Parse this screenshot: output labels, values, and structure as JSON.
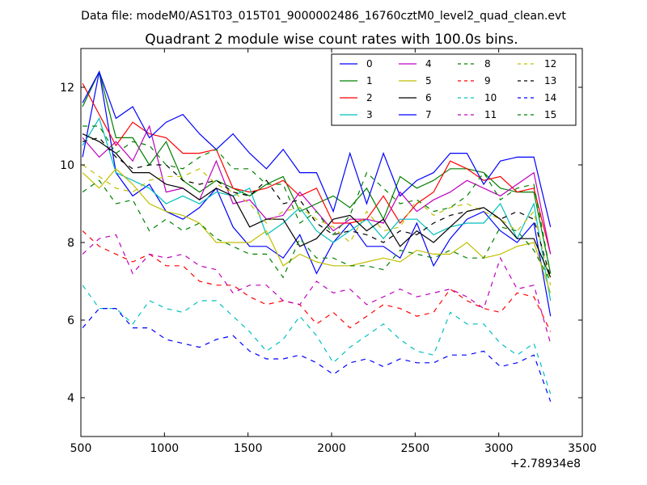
{
  "suptitle": "Data file: modeM0/AS1T03_015T01_9000002486_16760cztM0_level2_quad_clean.evt",
  "chart_data": {
    "type": "line",
    "title": "Quadrant 2 module wise count rates with 100.0s bins.",
    "xlabel": "",
    "ylabel": "",
    "x_offset_label": "+2.78934e8",
    "xlim": [
      500,
      3500
    ],
    "ylim": [
      3,
      13
    ],
    "grid": false,
    "legend_position": "top-right",
    "legend_columns": 4,
    "xticks": [
      500,
      1000,
      1500,
      2000,
      2500,
      3000,
      3500
    ],
    "yticks": [
      4,
      6,
      8,
      10,
      12
    ],
    "x": [
      510,
      610,
      710,
      810,
      910,
      1010,
      1110,
      1210,
      1310,
      1410,
      1510,
      1610,
      1710,
      1810,
      1910,
      2010,
      2110,
      2210,
      2310,
      2410,
      2510,
      2610,
      2710,
      2810,
      2910,
      3010,
      3110,
      3210,
      3310
    ],
    "series": [
      {
        "name": "0",
        "color": "#0000ff",
        "dash": "solid",
        "values": [
          10.2,
          12.4,
          9.8,
          9.2,
          9.5,
          8.8,
          8.6,
          8.9,
          9.4,
          8.4,
          7.9,
          7.9,
          7.6,
          8.2,
          7.2,
          8.0,
          8.5,
          7.9,
          7.9,
          7.6,
          8.5,
          7.4,
          8.1,
          8.6,
          8.8,
          8.3,
          8.0,
          8.5,
          6.1
        ]
      },
      {
        "name": "1",
        "color": "#008000",
        "dash": "solid",
        "values": [
          11.5,
          12.4,
          10.7,
          10.7,
          10.0,
          10.6,
          9.6,
          9.3,
          9.6,
          9.4,
          9.2,
          9.5,
          9.7,
          8.8,
          9.0,
          9.2,
          8.9,
          9.4,
          8.6,
          9.7,
          9.4,
          9.6,
          9.9,
          9.9,
          9.8,
          9.4,
          9.3,
          9.3,
          7.2
        ]
      },
      {
        "name": "2",
        "color": "#ff0000",
        "dash": "solid",
        "values": [
          12.1,
          11.3,
          10.5,
          11.1,
          10.8,
          10.7,
          10.3,
          10.3,
          10.4,
          9.4,
          9.3,
          9.4,
          9.6,
          9.2,
          9.4,
          8.5,
          8.5,
          8.6,
          9.2,
          8.5,
          9.0,
          9.3,
          10.1,
          9.9,
          9.6,
          9.7,
          9.3,
          9.4,
          7.7
        ]
      },
      {
        "name": "3",
        "color": "#00bfbf",
        "dash": "solid",
        "values": [
          10.5,
          11.2,
          9.8,
          9.6,
          9.4,
          9.0,
          9.2,
          9.0,
          9.3,
          9.2,
          9.4,
          8.2,
          8.5,
          8.9,
          8.3,
          8.0,
          8.3,
          8.6,
          8.1,
          8.6,
          8.6,
          8.2,
          8.4,
          8.5,
          8.5,
          9.0,
          8.1,
          9.0,
          6.5
        ]
      },
      {
        "name": "4",
        "color": "#bf00bf",
        "dash": "solid",
        "values": [
          10.7,
          10.2,
          10.6,
          10.1,
          11.0,
          9.3,
          9.4,
          9.1,
          10.1,
          9.0,
          9.1,
          8.6,
          8.7,
          9.3,
          8.8,
          8.3,
          8.6,
          8.6,
          8.5,
          9.3,
          8.8,
          9.1,
          9.3,
          9.6,
          9.4,
          9.2,
          9.5,
          9.8,
          7.7
        ]
      },
      {
        "name": "5",
        "color": "#bfbf00",
        "dash": "solid",
        "values": [
          9.8,
          9.4,
          9.9,
          9.5,
          9.0,
          8.8,
          8.7,
          8.5,
          8.0,
          8.0,
          8.0,
          8.3,
          7.4,
          7.7,
          7.5,
          7.4,
          7.4,
          7.5,
          7.6,
          7.5,
          7.8,
          7.7,
          7.7,
          8.0,
          7.6,
          7.7,
          7.9,
          8.0,
          6.7
        ]
      },
      {
        "name": "6",
        "color": "#000000",
        "dash": "solid",
        "values": [
          10.8,
          10.6,
          10.3,
          9.8,
          9.8,
          9.5,
          9.4,
          9.1,
          9.4,
          9.2,
          8.4,
          8.6,
          8.6,
          7.9,
          8.1,
          8.6,
          8.7,
          8.3,
          8.6,
          7.9,
          8.3,
          8.0,
          8.4,
          8.8,
          8.9,
          8.6,
          8.1,
          8.1,
          7.1
        ]
      },
      {
        "name": "7",
        "color": "#0000ff",
        "dash": "solid",
        "values": [
          11.6,
          12.4,
          11.2,
          11.5,
          10.7,
          11.1,
          11.3,
          10.8,
          10.4,
          10.8,
          10.3,
          9.9,
          10.4,
          9.8,
          9.8,
          8.8,
          10.3,
          9.0,
          10.3,
          9.2,
          9.6,
          9.8,
          10.3,
          10.3,
          9.5,
          10.1,
          10.2,
          10.2,
          8.4
        ]
      },
      {
        "name": "8",
        "color": "#008000",
        "dash": "dashed",
        "values": [
          9.3,
          9.6,
          9.0,
          9.1,
          8.3,
          8.6,
          8.3,
          8.5,
          8.1,
          7.9,
          7.7,
          7.7,
          7.1,
          8.1,
          7.6,
          7.6,
          7.4,
          7.4,
          7.3,
          7.8,
          7.7,
          7.6,
          7.8,
          7.6,
          7.6,
          8.4,
          8.3,
          7.8,
          7.0
        ]
      },
      {
        "name": "9",
        "color": "#ff0000",
        "dash": "dashed",
        "values": [
          8.3,
          7.9,
          7.7,
          7.5,
          7.7,
          7.4,
          7.4,
          7.0,
          6.9,
          6.9,
          6.6,
          6.4,
          6.5,
          6.4,
          5.9,
          6.2,
          5.8,
          6.1,
          6.4,
          6.3,
          6.1,
          6.2,
          6.8,
          6.5,
          6.3,
          6.2,
          6.7,
          6.6,
          5.7
        ]
      },
      {
        "name": "10",
        "color": "#00bfbf",
        "dash": "dashed",
        "values": [
          6.9,
          6.3,
          6.3,
          5.9,
          6.5,
          6.3,
          6.2,
          6.5,
          6.5,
          6.1,
          5.7,
          5.2,
          5.5,
          6.1,
          5.6,
          4.9,
          5.3,
          5.6,
          5.9,
          5.5,
          5.2,
          5.1,
          6.2,
          5.9,
          5.9,
          5.4,
          5.1,
          5.4,
          4.1
        ]
      },
      {
        "name": "11",
        "color": "#bf00bf",
        "dash": "dashed",
        "values": [
          7.7,
          8.1,
          8.2,
          7.2,
          7.7,
          7.6,
          7.7,
          7.4,
          7.3,
          6.7,
          6.9,
          6.9,
          6.5,
          6.4,
          7.0,
          6.7,
          6.8,
          6.4,
          6.6,
          6.8,
          6.6,
          6.7,
          6.8,
          6.6,
          6.3,
          7.6,
          6.8,
          6.9,
          5.4
        ]
      },
      {
        "name": "12",
        "color": "#bfbf00",
        "dash": "dashed",
        "values": [
          10.0,
          9.7,
          9.4,
          9.3,
          9.6,
          9.7,
          9.7,
          9.9,
          9.5,
          9.3,
          9.0,
          8.5,
          8.8,
          8.9,
          8.6,
          8.4,
          8.0,
          8.8,
          8.3,
          8.4,
          9.1,
          8.7,
          8.9,
          9.0,
          8.8,
          8.6,
          8.3,
          8.8,
          6.9
        ]
      },
      {
        "name": "13",
        "color": "#000000",
        "dash": "dashed",
        "values": [
          10.6,
          10.7,
          10.2,
          9.9,
          10.0,
          10.0,
          9.6,
          9.5,
          9.6,
          9.3,
          9.2,
          9.6,
          9.0,
          9.1,
          8.5,
          8.2,
          8.3,
          8.2,
          8.0,
          8.3,
          8.2,
          8.5,
          8.7,
          8.8,
          8.9,
          8.6,
          8.8,
          8.6,
          7.1
        ]
      },
      {
        "name": "14",
        "color": "#0000ff",
        "dash": "dashed",
        "values": [
          5.8,
          6.3,
          6.3,
          5.8,
          5.8,
          5.5,
          5.4,
          5.3,
          5.5,
          5.6,
          5.2,
          5.0,
          5.0,
          5.1,
          4.9,
          4.6,
          4.9,
          5.0,
          4.8,
          5.0,
          4.9,
          4.9,
          5.1,
          5.1,
          5.2,
          4.8,
          4.9,
          5.1,
          3.9
        ]
      },
      {
        "name": "15",
        "color": "#008000",
        "dash": "dashed",
        "values": [
          11.0,
          11.0,
          10.3,
          10.6,
          10.5,
          10.0,
          9.9,
          10.2,
          10.4,
          9.9,
          9.9,
          9.5,
          9.5,
          8.5,
          8.8,
          8.2,
          8.7,
          9.8,
          9.4,
          9.0,
          9.1,
          8.8,
          8.9,
          9.2,
          9.8,
          9.1,
          9.4,
          9.5,
          7.2
        ]
      }
    ]
  }
}
